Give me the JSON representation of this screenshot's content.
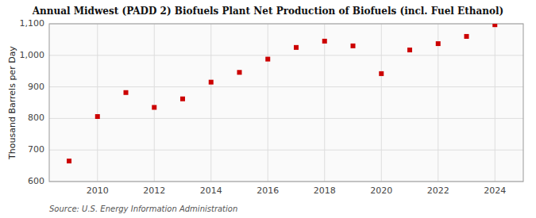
{
  "chart_data": {
    "type": "scatter",
    "title": "Annual Midwest (PADD 2) Biofuels Plant Net Production of Biofuels (incl. Fuel Ethanol)",
    "y_label": "Thousand Barrels per Day",
    "annotations": [
      "Source: U.S. Energy Information Administration"
    ],
    "x": [
      2009,
      2010,
      2011,
      2012,
      2013,
      2014,
      2015,
      2016,
      2017,
      2018,
      2019,
      2020,
      2021,
      2022,
      2023,
      2024
    ],
    "values": [
      665,
      806,
      882,
      835,
      862,
      915,
      946,
      988,
      1025,
      1045,
      1030,
      942,
      1017,
      1037,
      1060,
      1097
    ],
    "color": "#cc0000",
    "marker": "square",
    "xlim": [
      2008.3,
      2025.0
    ],
    "xticks": [
      2010,
      2012,
      2014,
      2016,
      2018,
      2020,
      2022,
      2024
    ],
    "ylim": [
      600,
      1100
    ],
    "yticks": [
      600,
      700,
      800,
      900,
      {
        "value": 1000,
        "label": "1,000"
      },
      {
        "value": 1100,
        "label": "1,100"
      }
    ],
    "grid": true
  }
}
